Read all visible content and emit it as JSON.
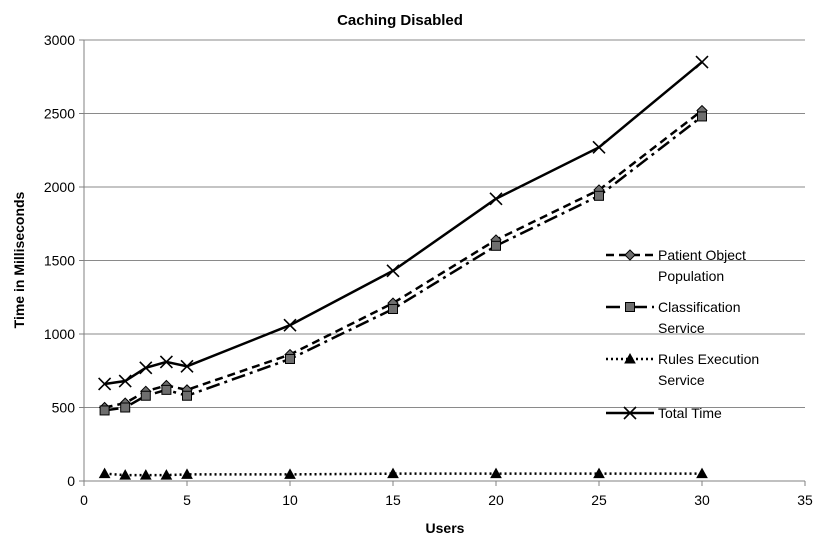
{
  "chart_data": {
    "type": "line",
    "title": "Caching Disabled",
    "xlabel": "Users",
    "ylabel": "Time in Milliseconds",
    "xlim": [
      0,
      35
    ],
    "ylim": [
      0,
      3000
    ],
    "x_ticks": [
      "0",
      "5",
      "10",
      "15",
      "20",
      "25",
      "30",
      "35"
    ],
    "y_ticks": [
      "0",
      "500",
      "1000",
      "1500",
      "2000",
      "2500",
      "3000"
    ],
    "grid": "horizontal",
    "legend_position": "right",
    "x": [
      1,
      2,
      3,
      4,
      5,
      10,
      15,
      20,
      25,
      30
    ],
    "series": [
      {
        "name": "Patient Object Population",
        "legend_lines": [
          "Patient Object",
          "Population"
        ],
        "marker": "diamond",
        "dash": "dashed",
        "color": "#000000",
        "values": [
          500,
          530,
          610,
          650,
          620,
          860,
          1210,
          1640,
          1980,
          2520
        ]
      },
      {
        "name": "Classification Service",
        "legend_lines": [
          "Classification",
          "Service"
        ],
        "marker": "square",
        "dash": "dash-dot",
        "color": "#000000",
        "values": [
          480,
          500,
          580,
          620,
          580,
          830,
          1170,
          1600,
          1940,
          2480
        ]
      },
      {
        "name": "Rules Execution Service",
        "legend_lines": [
          "Rules Execution",
          "Service"
        ],
        "marker": "triangle",
        "dash": "dotted",
        "color": "#000000",
        "values": [
          50,
          40,
          40,
          40,
          45,
          45,
          50,
          50,
          50,
          50
        ]
      },
      {
        "name": "Total Time",
        "legend_lines": [
          "Total Time"
        ],
        "marker": "x",
        "dash": "solid",
        "color": "#000000",
        "values": [
          660,
          680,
          770,
          810,
          780,
          1060,
          1430,
          1920,
          2270,
          2850
        ]
      }
    ]
  }
}
